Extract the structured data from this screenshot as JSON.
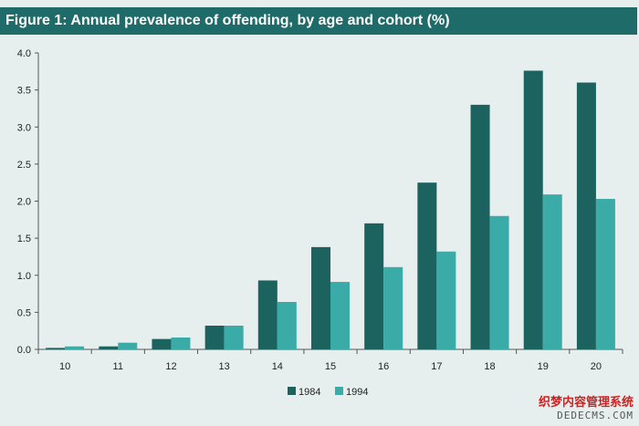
{
  "chart_data": {
    "type": "bar",
    "title": "Figure 1: Annual prevalence of offending, by age and cohort (%)",
    "xlabel": "",
    "ylabel": "",
    "categories": [
      "10",
      "11",
      "12",
      "13",
      "14",
      "15",
      "16",
      "17",
      "18",
      "19",
      "20"
    ],
    "series": [
      {
        "name": "1984",
        "color": "#1c6360",
        "values": [
          0.02,
          0.04,
          0.14,
          0.32,
          0.93,
          1.38,
          1.7,
          2.25,
          3.3,
          3.76,
          3.6
        ]
      },
      {
        "name": "1994",
        "color": "#3aaba6",
        "values": [
          0.04,
          0.09,
          0.16,
          0.32,
          0.64,
          0.91,
          1.11,
          1.32,
          1.8,
          2.09,
          2.03
        ]
      }
    ],
    "ylim": [
      0,
      4.0
    ],
    "yticks": [
      "0.0",
      "0.5",
      "1.0",
      "1.5",
      "2.0",
      "2.5",
      "3.0",
      "3.5",
      "4.0"
    ],
    "grid": false,
    "legend_position": "bottom-center"
  },
  "watermark": {
    "line1": "织梦内容管理系统",
    "line2": "DEDECMS.COM"
  }
}
